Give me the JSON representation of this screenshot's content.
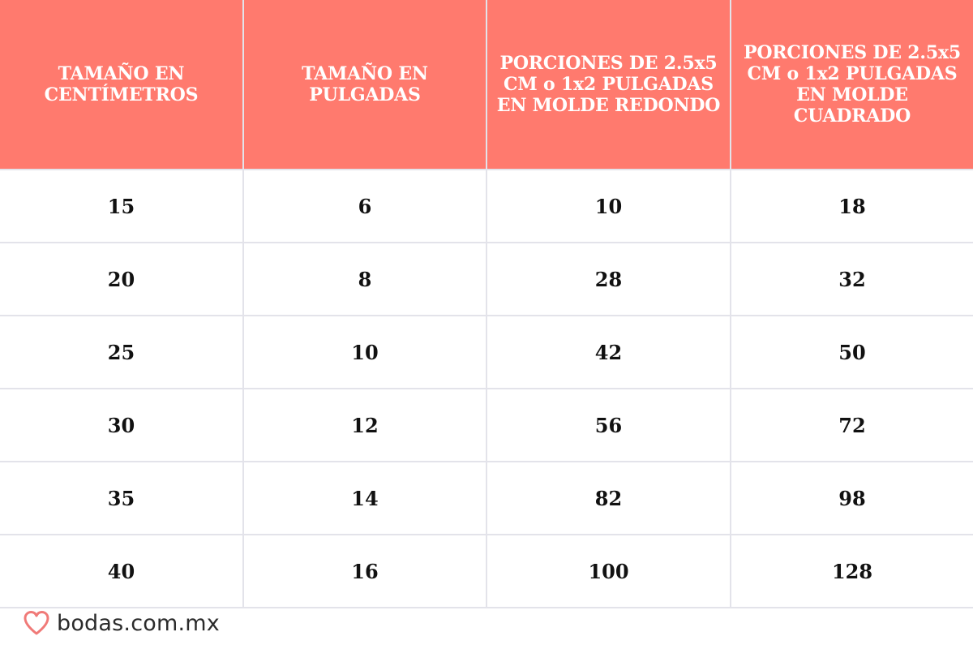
{
  "table": {
    "headers": [
      "TAMAÑO EN CENTÍMETROS",
      "TAMAÑO EN PULGADAS",
      "PORCIONES DE 2.5x5 CM o 1x2 PULGADAS EN MOLDE REDONDO",
      "PORCIONES DE 2.5x5 CM o 1x2 PULGADAS EN MOLDE CUADRADO"
    ],
    "rows": [
      [
        "15",
        "6",
        "10",
        "18"
      ],
      [
        "20",
        "8",
        "28",
        "32"
      ],
      [
        "25",
        "10",
        "42",
        "50"
      ],
      [
        "30",
        "12",
        "56",
        "72"
      ],
      [
        "35",
        "14",
        "82",
        "98"
      ],
      [
        "40",
        "16",
        "100",
        "128"
      ]
    ]
  },
  "footer": {
    "brand": "bodas.com.mx",
    "icon": "heart-icon"
  },
  "colors": {
    "header_bg": "#ff7a6e",
    "header_text": "#ffffff",
    "grid_line": "#e3e3ea",
    "brand_heart": "#f07a78"
  }
}
